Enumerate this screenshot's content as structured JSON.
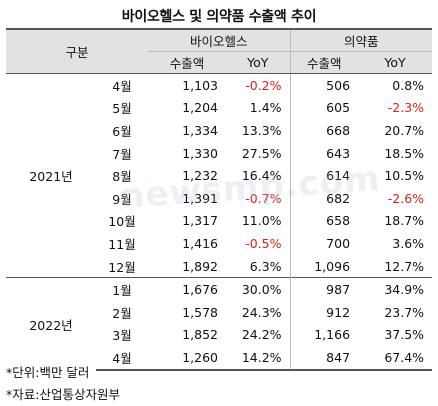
{
  "title": "바이오헬스 및 의약품 수출액 추이",
  "header": {
    "group_col": "구분",
    "bio": "바이오헬스",
    "pharma": "의약품",
    "export": "수출액",
    "yoy": "YoY"
  },
  "years": [
    {
      "label": "2021년",
      "rows": [
        {
          "month": "4월",
          "bio_exp": "1,103",
          "bio_yoy": "-0.2%",
          "ph_exp": "506",
          "ph_yoy": "0.8%"
        },
        {
          "month": "5월",
          "bio_exp": "1,204",
          "bio_yoy": "1.4%",
          "ph_exp": "605",
          "ph_yoy": "-2.3%"
        },
        {
          "month": "6월",
          "bio_exp": "1,334",
          "bio_yoy": "13.3%",
          "ph_exp": "668",
          "ph_yoy": "20.7%"
        },
        {
          "month": "7월",
          "bio_exp": "1,330",
          "bio_yoy": "27.5%",
          "ph_exp": "643",
          "ph_yoy": "18.5%"
        },
        {
          "month": "8월",
          "bio_exp": "1,232",
          "bio_yoy": "16.4%",
          "ph_exp": "614",
          "ph_yoy": "10.5%"
        },
        {
          "month": "9월",
          "bio_exp": "1,391",
          "bio_yoy": "-0.7%",
          "ph_exp": "682",
          "ph_yoy": "-2.6%"
        },
        {
          "month": "10월",
          "bio_exp": "1,317",
          "bio_yoy": "11.0%",
          "ph_exp": "658",
          "ph_yoy": "18.7%"
        },
        {
          "month": "11월",
          "bio_exp": "1,416",
          "bio_yoy": "-0.5%",
          "ph_exp": "700",
          "ph_yoy": "3.6%"
        },
        {
          "month": "12월",
          "bio_exp": "1,892",
          "bio_yoy": "6.3%",
          "ph_exp": "1,096",
          "ph_yoy": "12.7%"
        }
      ]
    },
    {
      "label": "2022년",
      "rows": [
        {
          "month": "1월",
          "bio_exp": "1,676",
          "bio_yoy": "30.0%",
          "ph_exp": "987",
          "ph_yoy": "34.9%"
        },
        {
          "month": "2월",
          "bio_exp": "1,578",
          "bio_yoy": "24.3%",
          "ph_exp": "912",
          "ph_yoy": "23.7%"
        },
        {
          "month": "3월",
          "bio_exp": "1,852",
          "bio_yoy": "24.2%",
          "ph_exp": "1,166",
          "ph_yoy": "37.5%"
        },
        {
          "month": "4월",
          "bio_exp": "1,260",
          "bio_yoy": "14.2%",
          "ph_exp": "847",
          "ph_yoy": "67.4%"
        }
      ]
    }
  ],
  "notes": [
    "*단위:백만 달러",
    "*자료:산업통상자원부"
  ],
  "watermark": "newsmp.com",
  "colors": {
    "header_bg": "#e2e2e2",
    "negative": "#e02020"
  }
}
